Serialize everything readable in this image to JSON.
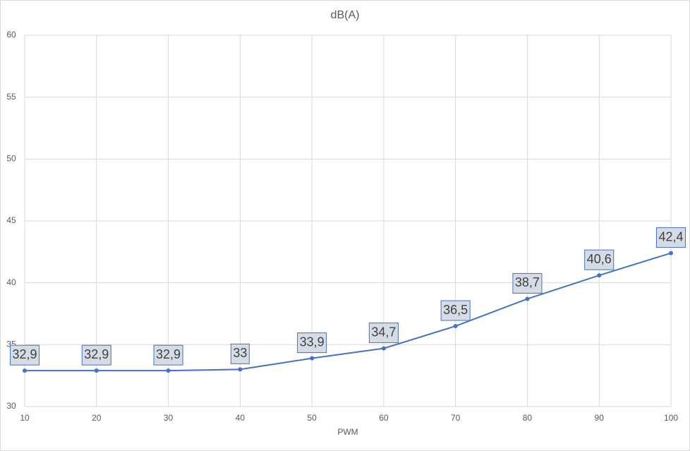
{
  "chart_data": {
    "type": "line",
    "title": "dB(A)",
    "x_label": "PWM",
    "x": [
      10,
      20,
      30,
      40,
      50,
      60,
      70,
      80,
      90,
      100
    ],
    "values": [
      32.9,
      32.9,
      32.9,
      33,
      33.9,
      34.7,
      36.5,
      38.7,
      40.6,
      42.4
    ],
    "value_labels": [
      "32,9",
      "32,9",
      "32,9",
      "33",
      "33,9",
      "34,7",
      "36,5",
      "38,7",
      "40,6",
      "42,4"
    ],
    "color": "#4472c4",
    "xlim": [
      10,
      100
    ],
    "xticks": [
      10,
      20,
      30,
      40,
      50,
      60,
      70,
      80,
      90,
      100
    ],
    "ylim": [
      30,
      60
    ],
    "yticks": [
      30,
      35,
      40,
      45,
      50,
      55,
      60
    ],
    "grid": true
  }
}
